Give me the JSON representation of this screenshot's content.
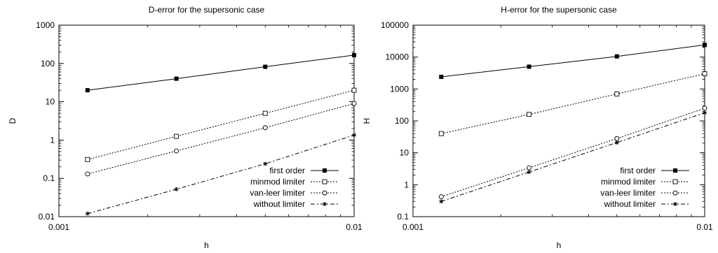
{
  "chart_data": [
    {
      "type": "line",
      "title": "D-error for the supersonic case",
      "xlabel": "h",
      "ylabel": "D",
      "xscale": "log",
      "yscale": "log",
      "xlim": [
        0.001,
        0.01
      ],
      "ylim": [
        0.01,
        1000
      ],
      "xticks": [
        "0.001",
        "0.01"
      ],
      "yticks": [
        "0.01",
        "0.1",
        "1",
        "10",
        "100",
        "1000"
      ],
      "grid": false,
      "legend_position": "bottom-right",
      "x": [
        0.00125,
        0.0025,
        0.005,
        0.01
      ],
      "series": [
        {
          "name": "first order",
          "values": [
            20,
            40,
            82,
            165
          ],
          "dash": "solid",
          "marker": "filled-square"
        },
        {
          "name": "minmod limiter",
          "values": [
            0.31,
            1.25,
            5.0,
            20
          ],
          "dash": "dotted",
          "marker": "open-square"
        },
        {
          "name": "van-leer limiter",
          "values": [
            0.13,
            0.52,
            2.1,
            9
          ],
          "dash": "dotted",
          "marker": "open-circle"
        },
        {
          "name": "without limiter",
          "values": [
            0.012,
            0.052,
            0.24,
            1.35
          ],
          "dash": "dashdot",
          "marker": "star"
        }
      ]
    },
    {
      "type": "line",
      "title": "H-error for the supersonic case",
      "xlabel": "h",
      "ylabel": "H",
      "xscale": "log",
      "yscale": "log",
      "xlim": [
        0.001,
        0.01
      ],
      "ylim": [
        0.1,
        100000
      ],
      "xticks": [
        "0.001",
        "0.01"
      ],
      "yticks": [
        "0.1",
        "1",
        "10",
        "100",
        "1000",
        "10000",
        "100000"
      ],
      "grid": false,
      "legend_position": "bottom-right",
      "x": [
        0.00125,
        0.0025,
        0.005,
        0.01
      ],
      "series": [
        {
          "name": "first order",
          "values": [
            2400,
            5000,
            10500,
            24000
          ],
          "dash": "solid",
          "marker": "filled-square"
        },
        {
          "name": "minmod limiter",
          "values": [
            40,
            160,
            700,
            3000
          ],
          "dash": "dotted",
          "marker": "open-square"
        },
        {
          "name": "van-leer limiter",
          "values": [
            0.42,
            3.4,
            28,
            250
          ],
          "dash": "dotted",
          "marker": "open-circle"
        },
        {
          "name": "without limiter",
          "values": [
            0.3,
            2.5,
            21,
            180
          ],
          "dash": "dashdot",
          "marker": "star"
        }
      ]
    }
  ]
}
